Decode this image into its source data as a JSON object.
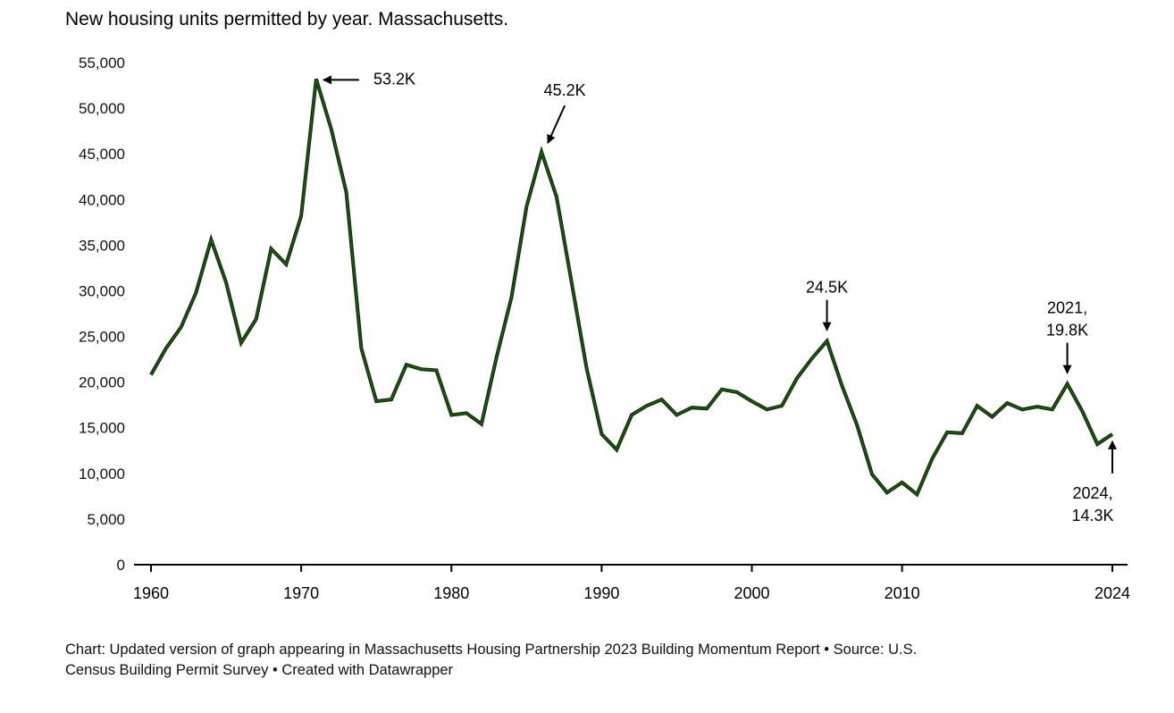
{
  "chart_data": {
    "type": "line",
    "title": "New housing units permitted by year. Massachusetts.",
    "xlabel": "",
    "ylabel": "",
    "xlim": [
      1960,
      2024
    ],
    "ylim": [
      0,
      55000
    ],
    "grid": false,
    "line_color": "#1f5e0f",
    "x_ticks": [
      "1960",
      "1970",
      "1980",
      "1990",
      "2000",
      "2010",
      "2024"
    ],
    "y_ticks": [
      "0",
      "5,000",
      "10,000",
      "15,000",
      "20,000",
      "25,000",
      "30,000",
      "35,000",
      "40,000",
      "45,000",
      "50,000",
      "55,000"
    ],
    "x": [
      1960,
      1961,
      1962,
      1963,
      1964,
      1965,
      1966,
      1967,
      1968,
      1969,
      1970,
      1971,
      1972,
      1973,
      1974,
      1975,
      1976,
      1977,
      1978,
      1979,
      1980,
      1981,
      1982,
      1983,
      1984,
      1985,
      1986,
      1987,
      1988,
      1989,
      1990,
      1991,
      1992,
      1993,
      1994,
      1995,
      1996,
      1997,
      1998,
      1999,
      2000,
      2001,
      2002,
      2003,
      2004,
      2005,
      2006,
      2007,
      2008,
      2009,
      2010,
      2011,
      2012,
      2013,
      2014,
      2015,
      2016,
      2017,
      2018,
      2019,
      2020,
      2021,
      2022,
      2023,
      2024
    ],
    "values": [
      20800,
      23700,
      26000,
      29800,
      35600,
      30900,
      24300,
      26900,
      34600,
      32900,
      38200,
      53200,
      47700,
      40800,
      23700,
      17900,
      18100,
      21900,
      21400,
      21300,
      16400,
      16600,
      15400,
      22700,
      29300,
      39200,
      45200,
      40300,
      30900,
      21500,
      14300,
      12600,
      16400,
      17400,
      18100,
      16400,
      17200,
      17100,
      19200,
      18900,
      17900,
      17000,
      17400,
      20400,
      22600,
      24500,
      19600,
      15300,
      9900,
      7900,
      9000,
      7700,
      11600,
      14500,
      14400,
      17400,
      16200,
      17700,
      17000,
      17300,
      17000,
      19800,
      16800,
      13200,
      14300
    ],
    "annotations": [
      {
        "year": 1971,
        "text": [
          "53.2K"
        ],
        "direction": "left"
      },
      {
        "year": 1986,
        "text": [
          "45.2K"
        ],
        "direction": "down-left"
      },
      {
        "year": 2005,
        "text": [
          "24.5K"
        ],
        "direction": "down"
      },
      {
        "year": 2021,
        "text": [
          "2021,",
          "19.8K"
        ],
        "direction": "down"
      },
      {
        "year": 2024,
        "text": [
          "2024,",
          "14.3K"
        ],
        "direction": "up"
      }
    ]
  },
  "footer": {
    "line1": "Chart: Updated version of graph appearing in Massachusetts Housing Partnership 2023 Building Momentum Report • Source: U.S.",
    "line2": "Census Building Permit Survey • Created with Datawrapper"
  }
}
